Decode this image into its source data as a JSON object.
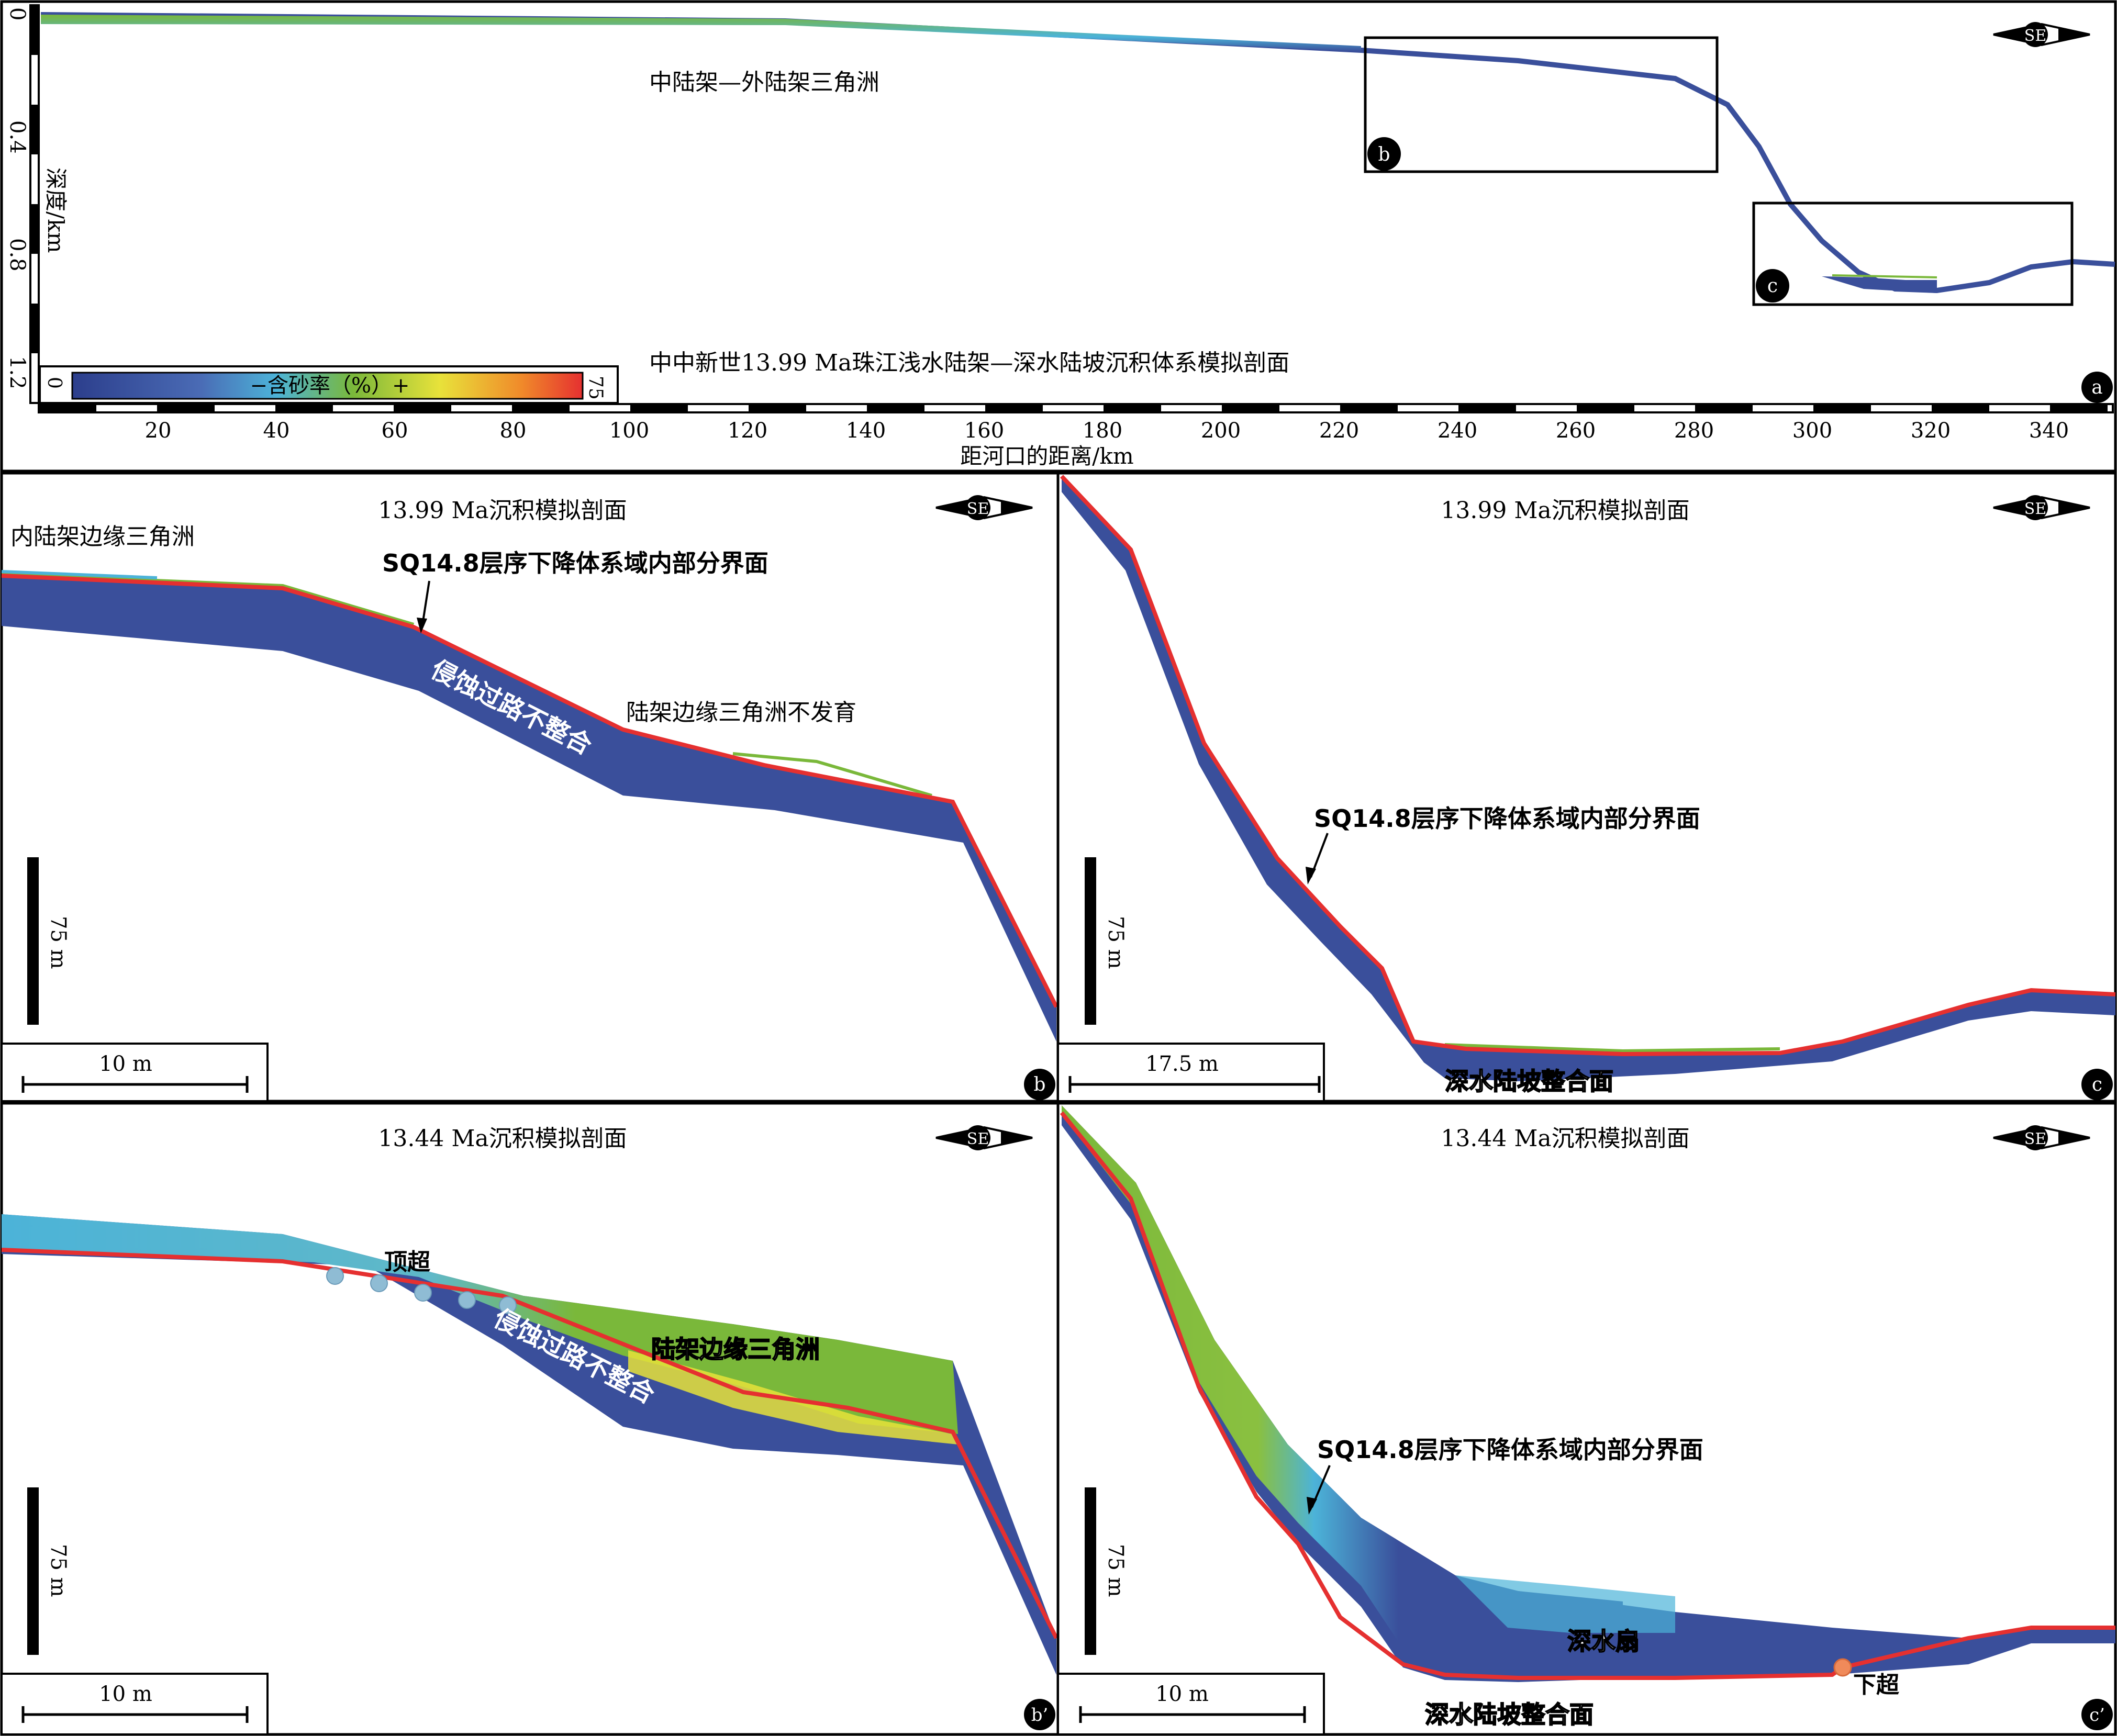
{
  "colors": {
    "deep_blue": "#3a4f9b",
    "mid_blue": "#4a6bb5",
    "cyan": "#4cb3d8",
    "green": "#7ab83a",
    "yellow": "#e8e23a",
    "red": "#e53030",
    "orange": "#f08a5a",
    "panel_border": "#000000"
  },
  "panel_a": {
    "letter": "a",
    "title": "中中新世13.99 Ma珠江浅水陆架—深水陆坡沉积体系模拟剖面",
    "annotation_delta": "中陆架—外陆架三角洲",
    "y_label": "深度/km",
    "y_ticks": [
      "0",
      "0.4",
      "0.8",
      "1.2"
    ],
    "x_label": "距河口的距离/km",
    "x_ticks": [
      "20",
      "40",
      "60",
      "80",
      "100",
      "120",
      "140",
      "160",
      "180",
      "200",
      "220",
      "240",
      "260",
      "280",
      "300",
      "320",
      "340"
    ],
    "inset_b": "b",
    "inset_c": "c",
    "compass": "SE",
    "colorbar": {
      "min": "0",
      "max": "75",
      "label": "−含砂率（%）+"
    }
  },
  "panel_b": {
    "letter": "b",
    "title": "13.99 Ma沉积模拟剖面",
    "compass": "SE",
    "label_inner_delta": "内陆架边缘三角洲",
    "label_boundary": "SQ14.8层序下降体系域内部分界面",
    "label_unconformity": "侵蚀过路不整合",
    "label_no_delta": "陆架边缘三角洲不发育",
    "scale_v": "75 m",
    "scale_h": "10 m"
  },
  "panel_c": {
    "letter": "c",
    "title": "13.99 Ma沉积模拟剖面",
    "compass": "SE",
    "label_boundary": "SQ14.8层序下降体系域内部分界面",
    "label_conformity": "深水陆坡整合面",
    "scale_v": "75 m",
    "scale_h": "17.5 m"
  },
  "panel_b2": {
    "letter": "b’",
    "title": "13.44 Ma沉积模拟剖面",
    "compass": "SE",
    "label_toplap": "顶超",
    "label_unconformity": "侵蚀过路不整合",
    "label_delta": "陆架边缘三角洲",
    "scale_v": "75 m",
    "scale_h": "10 m"
  },
  "panel_c2": {
    "letter": "c’",
    "title": "13.44 Ma沉积模拟剖面",
    "compass": "SE",
    "label_boundary": "SQ14.8层序下降体系域内部分界面",
    "label_fan": "深水扇",
    "label_downlap": "下超",
    "label_conformity": "深水陆坡整合面",
    "scale_v": "75 m",
    "scale_h": "10 m"
  }
}
